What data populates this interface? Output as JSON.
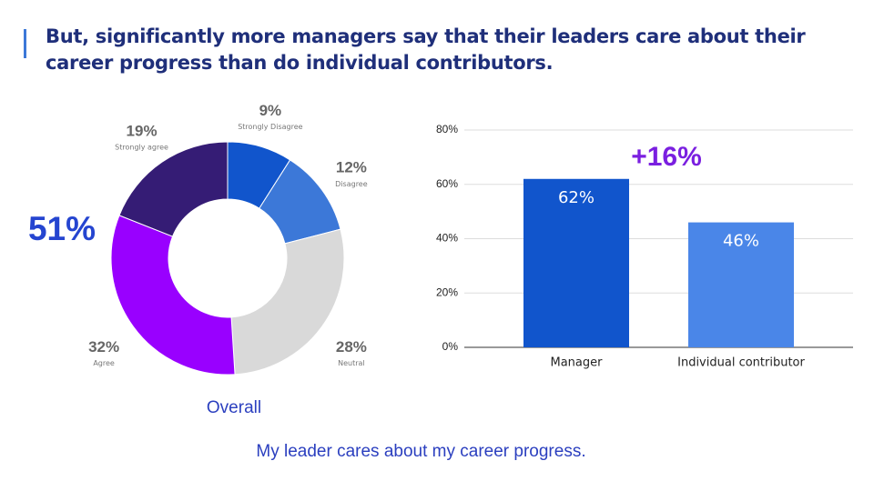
{
  "header": {
    "title": "But, significantly more managers say that their leaders care about their career progress than do individual contributors."
  },
  "caption": "My leader cares about my career progress.",
  "chart_data": [
    {
      "type": "donut",
      "subtitle": "Overall",
      "annotation": "51%",
      "categories": [
        "Strongly Disagree",
        "Disagree",
        "Neutral",
        "Agree",
        "Strongly agree"
      ],
      "values": [
        9,
        12,
        28,
        32,
        19
      ],
      "value_labels": [
        "9%",
        "12%",
        "28%",
        "32%",
        "19%"
      ],
      "colors": [
        "#1155cc",
        "#3c78d8",
        "#d9d9d9",
        "#9900ff",
        "#351c75"
      ]
    },
    {
      "type": "bar",
      "annotation": "+16%",
      "categories": [
        "Manager",
        "Individual contributor"
      ],
      "values": [
        62,
        46
      ],
      "value_labels": [
        "62%",
        "46%"
      ],
      "colors": [
        "#1155cc",
        "#4a86e8"
      ],
      "ylim": [
        0,
        80
      ],
      "yticks": [
        {
          "value": 0,
          "label": "0%"
        },
        {
          "value": 20,
          "label": "20%"
        },
        {
          "value": 40,
          "label": "40%"
        },
        {
          "value": 60,
          "label": "60%"
        },
        {
          "value": 80,
          "label": "80%"
        }
      ],
      "grid": true
    }
  ]
}
